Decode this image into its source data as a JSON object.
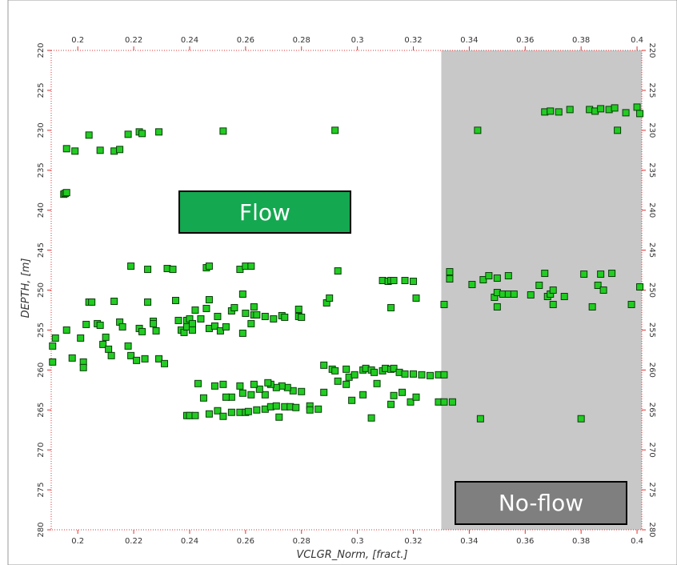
{
  "chart_data": {
    "type": "scatter",
    "x_label": "VCLGR_Norm, [fract.]",
    "y_label": "DEPTH, [m]",
    "xlim": [
      0.1905,
      0.4017
    ],
    "ylim": [
      220,
      280
    ],
    "y_inverted": true,
    "xticks": [
      0.2,
      0.22,
      0.24,
      0.26,
      0.28,
      0.3,
      0.32,
      0.34,
      0.36,
      0.38,
      0.4
    ],
    "yticks": [
      220,
      225,
      230,
      235,
      240,
      245,
      250,
      255,
      260,
      265,
      270,
      275,
      280
    ],
    "color": "#22cc22",
    "shaded_xrange": [
      0.33,
      0.4017
    ],
    "annotations": [
      "Flow",
      "No-flow"
    ],
    "x": [
      0.367,
      0.369,
      0.372,
      0.376,
      0.383,
      0.385,
      0.387,
      0.39,
      0.392,
      0.396,
      0.4,
      0.401,
      0.393,
      0.343,
      0.196,
      0.199,
      0.204,
      0.208,
      0.213,
      0.215,
      0.218,
      0.222,
      0.223,
      0.229,
      0.252,
      0.292,
      0.195,
      0.1955,
      0.196,
      0.219,
      0.225,
      0.232,
      0.234,
      0.246,
      0.247,
      0.258,
      0.26,
      0.262,
      0.293,
      0.333,
      0.333,
      0.341,
      0.345,
      0.347,
      0.35,
      0.354,
      0.349,
      0.35,
      0.352,
      0.354,
      0.356,
      0.35,
      0.362,
      0.365,
      0.367,
      0.368,
      0.369,
      0.37,
      0.37,
      0.374,
      0.381,
      0.384,
      0.386,
      0.387,
      0.388,
      0.391,
      0.398,
      0.401,
      0.331,
      0.309,
      0.311,
      0.312,
      0.313,
      0.317,
      0.312,
      0.32,
      0.321,
      0.289,
      0.29,
      0.192,
      0.191,
      0.191,
      0.196,
      0.198,
      0.201,
      0.202,
      0.202,
      0.203,
      0.204,
      0.205,
      0.207,
      0.208,
      0.209,
      0.21,
      0.211,
      0.212,
      0.213,
      0.215,
      0.216,
      0.218,
      0.219,
      0.221,
      0.222,
      0.223,
      0.224,
      0.225,
      0.227,
      0.227,
      0.228,
      0.229,
      0.231,
      0.235,
      0.236,
      0.237,
      0.238,
      0.239,
      0.239,
      0.24,
      0.241,
      0.241,
      0.242,
      0.244,
      0.246,
      0.247,
      0.247,
      0.249,
      0.25,
      0.251,
      0.253,
      0.255,
      0.256,
      0.259,
      0.26,
      0.262,
      0.263,
      0.264,
      0.267,
      0.27,
      0.273,
      0.274,
      0.279,
      0.279,
      0.28,
      0.263,
      0.259,
      0.288,
      0.291,
      0.292,
      0.296,
      0.297,
      0.299,
      0.302,
      0.303,
      0.305,
      0.306,
      0.309,
      0.31,
      0.312,
      0.313,
      0.315,
      0.317,
      0.32,
      0.323,
      0.326,
      0.329,
      0.331,
      0.329,
      0.331,
      0.334,
      0.298,
      0.302,
      0.305,
      0.307,
      0.312,
      0.313,
      0.316,
      0.319,
      0.321,
      0.288,
      0.286,
      0.283,
      0.283,
      0.28,
      0.277,
      0.275,
      0.273,
      0.271,
      0.269,
      0.268,
      0.267,
      0.265,
      0.263,
      0.262,
      0.259,
      0.258,
      0.255,
      0.253,
      0.252,
      0.249,
      0.245,
      0.243,
      0.239,
      0.24,
      0.242,
      0.247,
      0.25,
      0.252,
      0.255,
      0.258,
      0.26,
      0.261,
      0.264,
      0.267,
      0.269,
      0.271,
      0.272,
      0.274,
      0.276,
      0.278,
      0.344,
      0.38,
      0.296,
      0.293
    ],
    "values": [
      227.7,
      227.6,
      227.7,
      227.4,
      227.4,
      227.6,
      227.3,
      227.4,
      227.2,
      227.8,
      227.1,
      227.9,
      230,
      230,
      232.3,
      232.6,
      230.6,
      232.5,
      232.6,
      232.4,
      230.5,
      230.2,
      230.4,
      230.2,
      230.1,
      230.0,
      238,
      237.9,
      237.8,
      247,
      247.4,
      247.3,
      247.4,
      247.2,
      247,
      247.4,
      247,
      247,
      247.6,
      247.7,
      248.6,
      249.3,
      248.7,
      248.2,
      248.5,
      248.2,
      250.9,
      250.3,
      250.5,
      250.5,
      250.5,
      252.1,
      250.6,
      249.4,
      247.9,
      250.8,
      250.5,
      250,
      251.8,
      250.8,
      248,
      252.1,
      249.4,
      248,
      250,
      247.9,
      251.8,
      249.6,
      251.8,
      248.8,
      248.9,
      248.8,
      248.8,
      248.8,
      252.2,
      248.9,
      251,
      251.6,
      251,
      256,
      257,
      259,
      255,
      258.5,
      256,
      259,
      259.7,
      254.3,
      251.5,
      251.5,
      254.2,
      254.4,
      256.8,
      255.9,
      257.4,
      258.2,
      251.4,
      254,
      254.6,
      257,
      258.2,
      258.8,
      254.8,
      255.2,
      258.6,
      251.5,
      253.9,
      254.2,
      255.1,
      258.6,
      259.2,
      251.3,
      253.8,
      255,
      255.3,
      253.8,
      254.6,
      253.6,
      254.2,
      255,
      252.5,
      253.6,
      252.3,
      251.2,
      254.8,
      254.5,
      253.3,
      255.1,
      254.6,
      252.6,
      252.2,
      255.4,
      252.9,
      254.2,
      253.1,
      253.1,
      253.3,
      253.6,
      253.2,
      253.4,
      252.4,
      253.3,
      253.4,
      252.1,
      250.5,
      259.4,
      259.9,
      260.1,
      259.9,
      260.9,
      260.6,
      260,
      259.8,
      260,
      260.3,
      260.1,
      259.8,
      259.9,
      259.8,
      260.3,
      260.5,
      260.5,
      260.6,
      260.7,
      260.6,
      260.6,
      264,
      264,
      264,
      263.8,
      263.1,
      266,
      261.7,
      264.3,
      263.2,
      262.8,
      264,
      263.4,
      262.8,
      264.9,
      264.5,
      265,
      262.7,
      262.6,
      262.2,
      262,
      262.2,
      261.8,
      261.6,
      263.1,
      262.4,
      261.8,
      263.1,
      262.9,
      262,
      263.4,
      263.4,
      261.8,
      262,
      263.5,
      261.7,
      265.7,
      265.7,
      265.7,
      265.5,
      265.1,
      265.8,
      265.3,
      265.3,
      265.3,
      265.2,
      265,
      264.9,
      264.6,
      264.5,
      265.9,
      264.6,
      264.6,
      264.7,
      266.1,
      266.1,
      261.8,
      261.4
    ]
  }
}
